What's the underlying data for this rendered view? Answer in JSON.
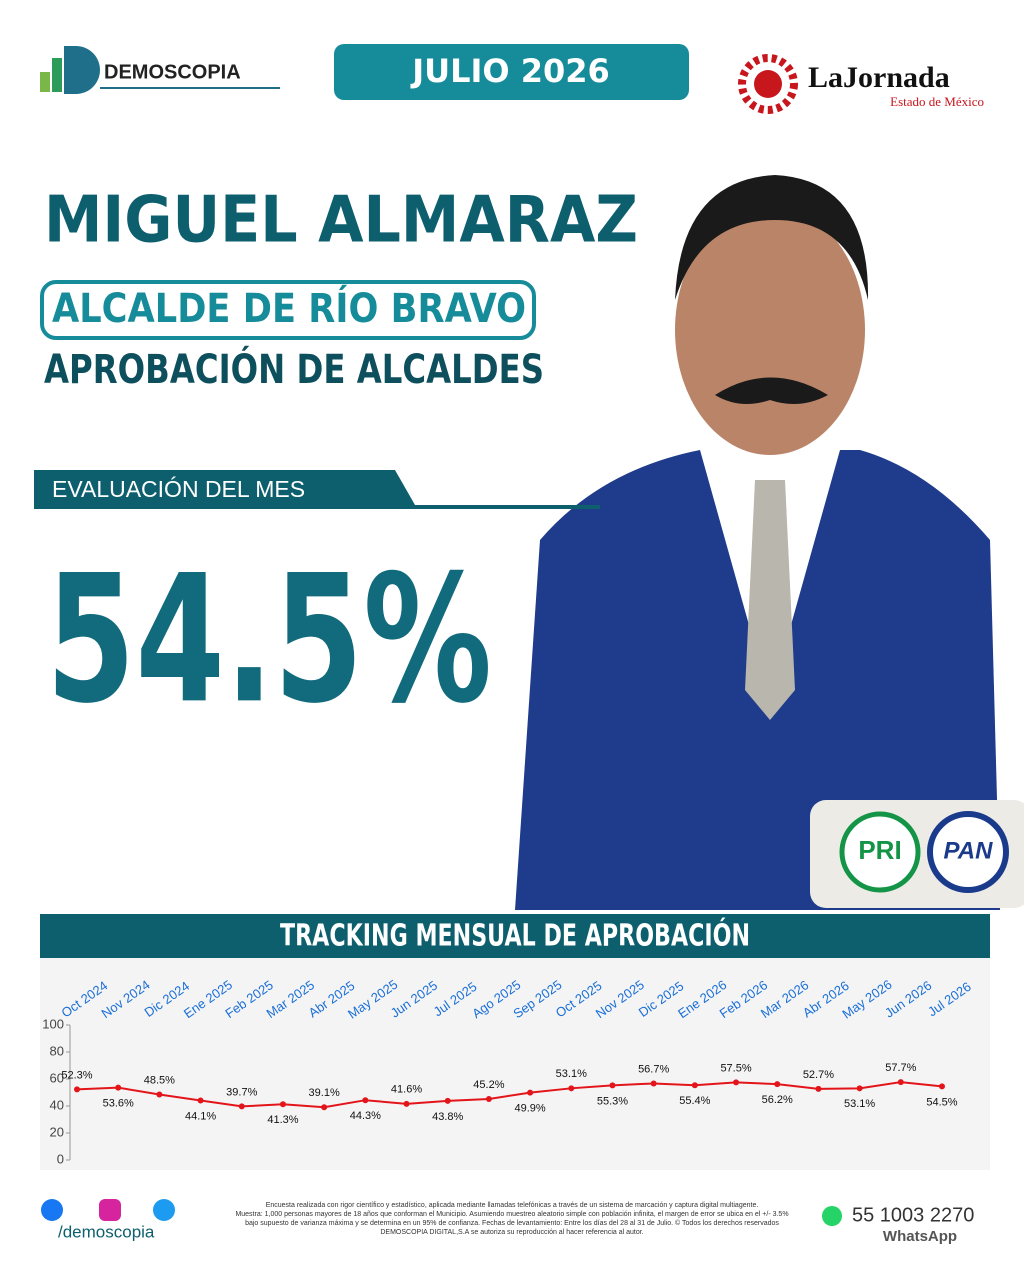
{
  "header": {
    "brand": "DEMOSCOPIA",
    "date": "JULIO 2026",
    "partner": "LaJornada",
    "partner_sub": "Estado de México"
  },
  "person": {
    "name": "MIGUEL ALMARAZ",
    "role": "ALCALDE DE RÍO BRAVO",
    "subtitle": "APROBACIÓN DE ALCALDES"
  },
  "evaluation": {
    "label": "EVALUACIÓN DEL MES",
    "value": "54.5%"
  },
  "parties": [
    "PRI",
    "PAN"
  ],
  "chart_data": {
    "type": "line",
    "title": "TRACKING MENSUAL DE APROBACIÓN",
    "categories": [
      "Oct 2024",
      "Nov 2024",
      "Dic 2024",
      "Ene 2025",
      "Feb 2025",
      "Mar 2025",
      "Abr 2025",
      "May 2025",
      "Jun 2025",
      "Jul 2025",
      "Ago 2025",
      "Sep 2025",
      "Oct 2025",
      "Nov 2025",
      "Dic 2025",
      "Ene 2026",
      "Feb 2026",
      "Mar 2026",
      "Abr 2026",
      "May 2026",
      "Jun 2026",
      "Jul 2026"
    ],
    "values": [
      52.3,
      53.6,
      48.5,
      44.1,
      39.7,
      41.3,
      39.1,
      44.3,
      41.6,
      43.8,
      45.2,
      49.9,
      53.1,
      55.3,
      56.7,
      55.4,
      57.5,
      56.2,
      52.7,
      53.1,
      57.7,
      54.5
    ],
    "value_labels": [
      "52.3%",
      "53.6%",
      "48.5%",
      "44.1%",
      "39.7%",
      "41.3%",
      "39.1%",
      "44.3%",
      "41.6%",
      "43.8%",
      "45.2%",
      "49.9%",
      "53.1%",
      "55.3%",
      "56.7%",
      "55.4%",
      "57.5%",
      "56.2%",
      "52.7%",
      "53.1%",
      "57.7%",
      "54.5%"
    ],
    "color": "#e3151a",
    "ylim": [
      0,
      100
    ],
    "yticks": [
      0,
      20,
      40,
      60,
      80,
      100
    ],
    "grid": false
  },
  "footer": {
    "handle": "/demoscopia",
    "disclaimer": [
      "Encuesta realizada con rigor científico y estadístico, aplicada mediante llamadas telefónicas a través de un sistema de marcación y captura digital multiagente.",
      "Muestra: 1,000 personas mayores de 18 años que conforman el Municipio. Asumiendo muestreo aleatorio simple con población infinita, el margen de error se ubica en el +/- 3.5%",
      "bajo supuesto de varianza máxima y se determina en un 95% de confianza. Fechas de levantamiento: Entre los días del 28 al 31 de Julio. © Todos los derechos reservados",
      "DEMOSCOPIA DIGITAL,S.A se autoriza su reproducción al hacer referencia al autor."
    ],
    "phone": "55 1003 2270",
    "phone_label": "WhatsApp"
  }
}
